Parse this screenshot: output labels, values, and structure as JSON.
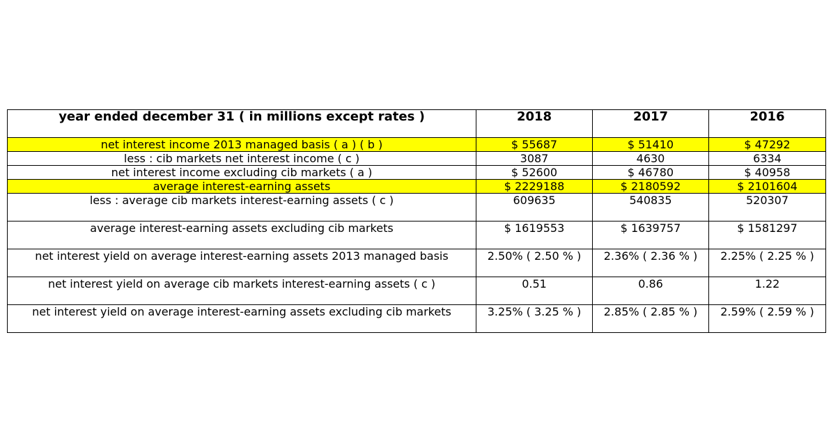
{
  "table": {
    "header": [
      "year ended december 31 ( in millions except rates )",
      "2018",
      "2017",
      "2016"
    ],
    "rows": [
      {
        "label": "net interest income 2013 managed basis ( a ) ( b )",
        "values": [
          "$ 55687",
          "$ 51410",
          "$ 47292"
        ],
        "highlight": true
      },
      {
        "label": "less : cib markets net interest income ( c )",
        "values": [
          "3087",
          "4630",
          "6334"
        ],
        "highlight": false
      },
      {
        "label": "net interest income excluding cib markets ( a )",
        "values": [
          "$ 52600",
          "$ 46780",
          "$ 40958"
        ],
        "highlight": false
      },
      {
        "label": "average interest-earning assets",
        "values": [
          "$ 2229188",
          "$ 2180592",
          "$ 2101604"
        ],
        "highlight": true
      },
      {
        "label": "less : average cib markets interest-earning assets ( c )",
        "values": [
          "609635",
          "540835",
          "520307"
        ],
        "highlight": false
      },
      {
        "label": "average interest-earning assets excluding cib markets",
        "values": [
          "$ 1619553",
          "$ 1639757",
          "$ 1581297"
        ],
        "highlight": false
      },
      {
        "label": "net interest yield on average interest-earning assets 2013 managed basis",
        "values": [
          "2.50% ( 2.50 % )",
          "2.36% ( 2.36 % )",
          "2.25% ( 2.25 % )"
        ],
        "highlight": false
      },
      {
        "label": "net interest yield on average cib markets interest-earning assets ( c )",
        "values": [
          "0.51",
          "0.86",
          "1.22"
        ],
        "highlight": false
      },
      {
        "label": "net interest yield on average interest-earning assets excluding cib markets",
        "values": [
          "3.25% ( 3.25 % )",
          "2.85% ( 2.85 % )",
          "2.59% ( 2.59 % )"
        ],
        "highlight": false
      }
    ]
  },
  "colors": {
    "highlight": "#ffff00",
    "border": "#000000",
    "background": "#ffffff"
  }
}
